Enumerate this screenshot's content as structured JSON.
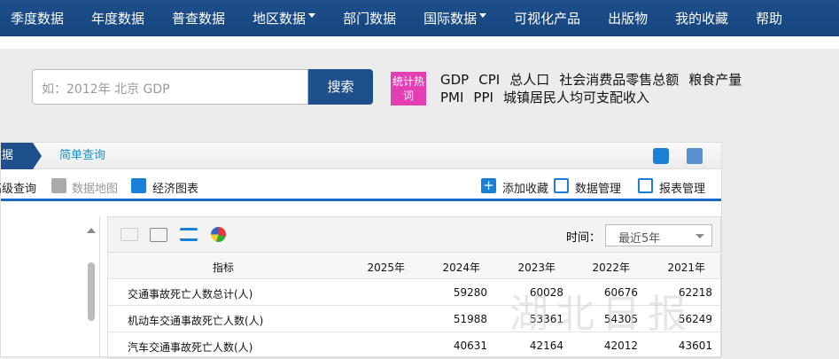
{
  "nav": [
    "季度数据",
    "年度数据",
    "普查数据",
    "地区数据",
    "部门数据",
    "国际数据",
    "可视化产品",
    "出版物",
    "我的收藏",
    "帮助"
  ],
  "search": {
    "placeholder": "如：2012年 北京 GDP",
    "button": "搜索"
  },
  "hot": {
    "badge": "统计热词",
    "line1": [
      "GDP",
      "CPI",
      "总人口",
      "社会消费品零售总额",
      "粮食产量"
    ],
    "line2": [
      "PMI",
      "PPI",
      "城镇居民人均可支配收入"
    ]
  },
  "breadcrumb": [
    "数据",
    "简单查询"
  ],
  "tools": {
    "advanced": "高级查询",
    "map": "数据地图",
    "chart": "经济图表",
    "fav": "添加收藏",
    "data_mgmt": "数据管理",
    "report_mgmt": "报表管理"
  },
  "time": {
    "label": "时间：",
    "value": "最近5年"
  },
  "table": {
    "headers": [
      "指标",
      "2025年",
      "2024年",
      "2023年",
      "2022年",
      "2021年"
    ],
    "rows": [
      [
        "交通事故死亡人数总计(人)",
        "",
        "59280",
        "60028",
        "60676",
        "62218"
      ],
      [
        "机动车交通事故死亡人数(人)",
        "",
        "51988",
        "53361",
        "54305",
        "56249"
      ],
      [
        "汽车交通事故死亡人数(人)",
        "",
        "40631",
        "42164",
        "42012",
        "43601"
      ]
    ]
  },
  "watermark": "湖北日报",
  "colors": {
    "nav": "#1d4f8c",
    "hot": "#e33fb5",
    "accent": "#1766c8"
  }
}
